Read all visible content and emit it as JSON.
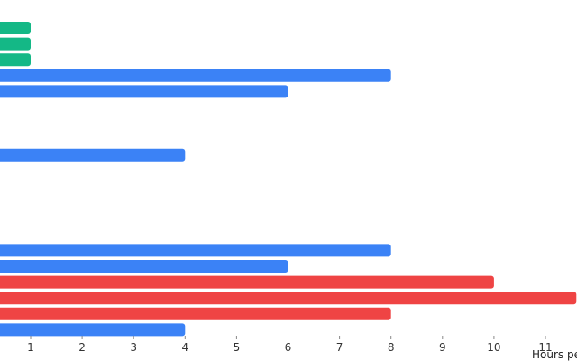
{
  "chart_data": {
    "type": "bar",
    "orientation": "horizontal",
    "xlabel": "Hours pe",
    "xlim": [
      0.4,
      11.6
    ],
    "xticks": [
      1,
      2,
      3,
      4,
      5,
      6,
      7,
      8,
      9,
      10,
      11
    ],
    "colors": {
      "green": "#14b886",
      "blue": "#3b82f6",
      "red": "#ef4444"
    },
    "bars": [
      {
        "value": 1,
        "color": "green"
      },
      {
        "value": 1,
        "color": "green"
      },
      {
        "value": 1,
        "color": "green"
      },
      {
        "value": 8,
        "color": "blue"
      },
      {
        "value": 6,
        "color": "blue"
      },
      {
        "value": null,
        "color": "blue"
      },
      {
        "value": null,
        "color": "blue"
      },
      {
        "value": null,
        "color": "blue"
      },
      {
        "value": 4,
        "color": "blue"
      },
      {
        "value": null,
        "color": "blue"
      },
      {
        "value": null,
        "color": "blue"
      },
      {
        "value": null,
        "color": "blue"
      },
      {
        "value": null,
        "color": "blue"
      },
      {
        "value": null,
        "color": "blue"
      },
      {
        "value": 8,
        "color": "blue"
      },
      {
        "value": 6,
        "color": "blue"
      },
      {
        "value": 10,
        "color": "red"
      },
      {
        "value": 11.6,
        "color": "red"
      },
      {
        "value": 8,
        "color": "red"
      },
      {
        "value": 4,
        "color": "blue"
      }
    ]
  }
}
